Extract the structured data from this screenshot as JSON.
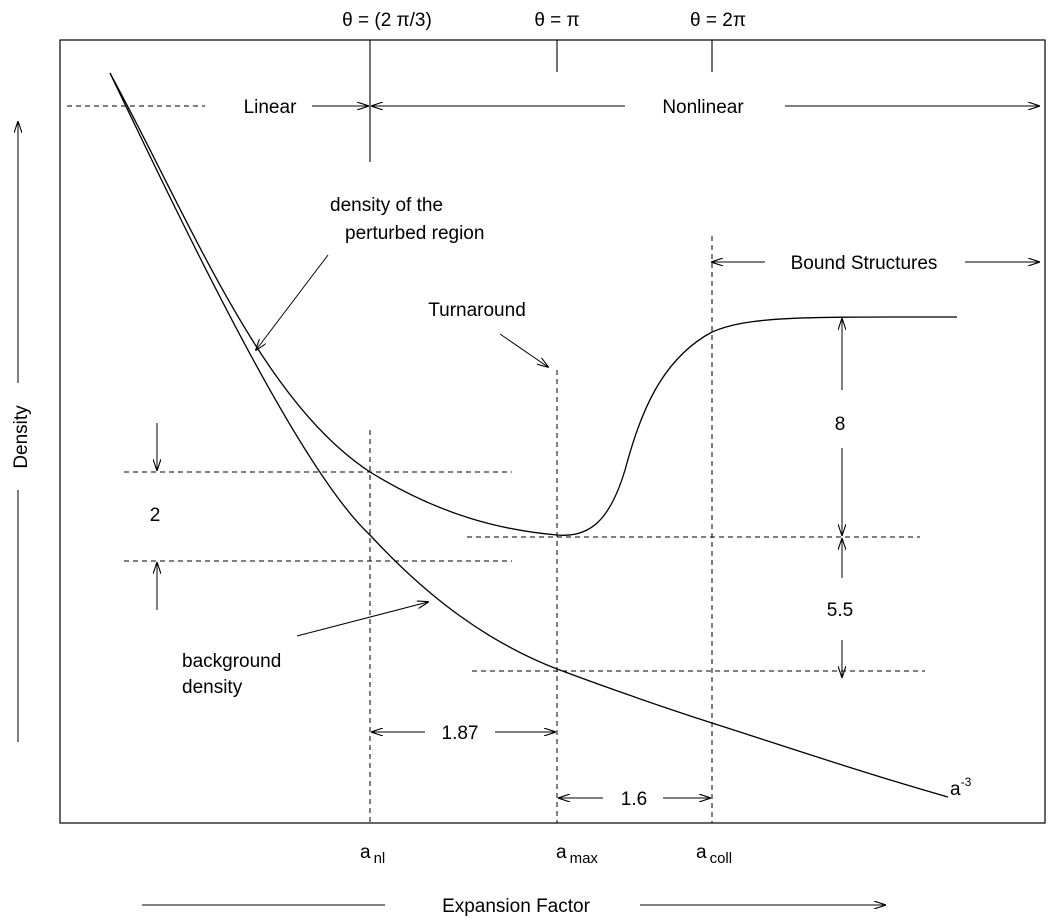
{
  "top_labels": {
    "theta_a": "θ = (2 π/3)",
    "theta_b": "θ = π",
    "theta_c": "θ = 2π"
  },
  "regimes": {
    "linear": "Linear",
    "nonlinear": "Nonlinear",
    "bound": "Bound Structures"
  },
  "annotations": {
    "perturbed_line1": "density of the",
    "perturbed_line2": "perturbed region",
    "turnaround": "Turnaround",
    "background_line1": "background",
    "background_line2": "density"
  },
  "measurements": {
    "two": "2",
    "eight": "8",
    "five_five": "5.5",
    "one_eight_seven": "1.87",
    "one_six": "1.6"
  },
  "x_markers": {
    "a_nl_base": "a",
    "a_nl_sub": "nl",
    "a_max_base": "a",
    "a_max_sub": "max",
    "a_coll_base": "a",
    "a_coll_sub": "coll"
  },
  "curve_label": {
    "base": "a",
    "sup": "-3"
  },
  "axes": {
    "xlabel": "Expansion Factor",
    "ylabel": "Density"
  }
}
